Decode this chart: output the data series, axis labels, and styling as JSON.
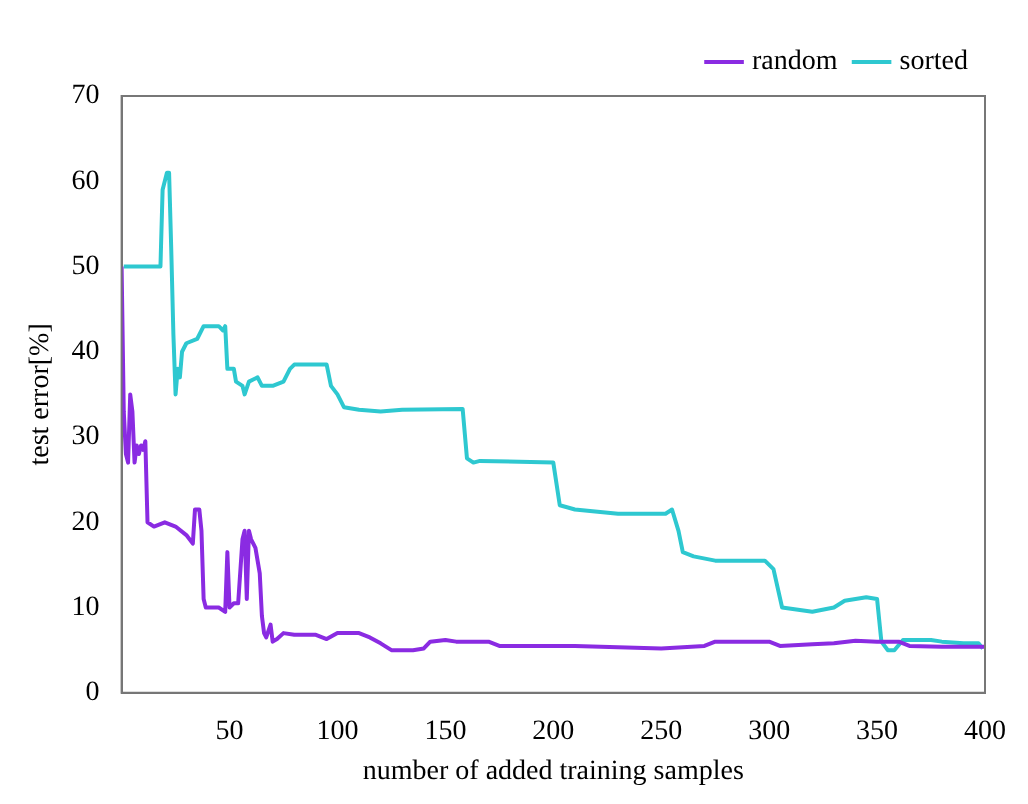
{
  "chart_data": {
    "type": "line",
    "xlabel": "number of added training samples",
    "ylabel": "test error[%]",
    "xlim": [
      0,
      400
    ],
    "xticks": [
      50,
      100,
      150,
      200,
      250,
      300,
      350,
      400
    ],
    "ylim": [
      0,
      70
    ],
    "yticks": [
      0,
      10,
      20,
      30,
      40,
      50,
      60,
      70
    ],
    "grid": false,
    "legend": "top right",
    "marker": "none",
    "line_style": "solid",
    "series": [
      {
        "name": "random",
        "color": "#8a2be2",
        "x": [
          0,
          1,
          2,
          3,
          4,
          5,
          6,
          7,
          8,
          9,
          10,
          11,
          12,
          15,
          20,
          25,
          30,
          33,
          34,
          36,
          37,
          38,
          39,
          45,
          48,
          49,
          50,
          52,
          54,
          56,
          57,
          58,
          59,
          60,
          62,
          64,
          65,
          66,
          67,
          69,
          70,
          72,
          75,
          80,
          90,
          95,
          100,
          110,
          115,
          120,
          125,
          135,
          140,
          143,
          150,
          155,
          160,
          170,
          175,
          200,
          210,
          250,
          270,
          275,
          300,
          305,
          320,
          330,
          340,
          350,
          360,
          365,
          380,
          400
        ],
        "values": [
          50,
          33,
          28,
          27,
          35,
          33,
          27,
          29,
          28,
          29,
          28.5,
          29.5,
          20,
          19.5,
          20,
          19.5,
          18.5,
          17.5,
          21.5,
          21.5,
          19,
          11,
          10,
          10,
          9.5,
          16.5,
          10,
          10.5,
          10.5,
          18,
          19,
          11,
          19,
          18,
          17,
          14,
          9,
          7,
          6.5,
          8,
          6,
          6.3,
          7,
          6.8,
          6.8,
          6.3,
          7,
          7,
          6.5,
          5.8,
          5,
          5,
          5.2,
          6,
          6.2,
          6,
          6,
          6,
          5.5,
          5.5,
          5.5,
          5.2,
          5.5,
          6,
          6,
          5.5,
          5.7,
          5.8,
          6.1,
          6,
          6,
          5.5,
          5.4,
          5.4
        ]
      },
      {
        "name": "sorted",
        "color": "#2ec8d0",
        "x": [
          1,
          18,
          19,
          21,
          22,
          23,
          24,
          25,
          26,
          27,
          28,
          30,
          35,
          38,
          45,
          47,
          48,
          49,
          52,
          53,
          56,
          57,
          59,
          63,
          65,
          70,
          75,
          78,
          80,
          95,
          97,
          100,
          103,
          110,
          120,
          130,
          158,
          160,
          163,
          166,
          200,
          203,
          210,
          230,
          252,
          255,
          258,
          260,
          265,
          275,
          298,
          302,
          306,
          320,
          330,
          335,
          340,
          345,
          350,
          352,
          355,
          358,
          362,
          370,
          375,
          380,
          390,
          397,
          399
        ],
        "values": [
          50,
          50,
          59,
          61,
          61,
          52,
          42,
          35,
          38,
          37,
          40,
          41,
          41.5,
          43,
          43,
          42.5,
          43,
          38,
          38,
          36.5,
          36,
          35,
          36.5,
          37,
          36,
          36,
          36.5,
          38,
          38.5,
          38.5,
          36,
          35,
          33.5,
          33.2,
          33,
          33.2,
          33.3,
          27.5,
          27,
          27.2,
          27,
          22,
          21.5,
          21,
          21,
          21.5,
          19,
          16.5,
          16,
          15.5,
          15.5,
          14.5,
          10,
          9.5,
          10,
          10.8,
          11,
          11.2,
          11,
          6,
          5,
          5,
          6.2,
          6.2,
          6.2,
          6,
          5.8,
          5.8,
          5.2
        ]
      }
    ]
  }
}
